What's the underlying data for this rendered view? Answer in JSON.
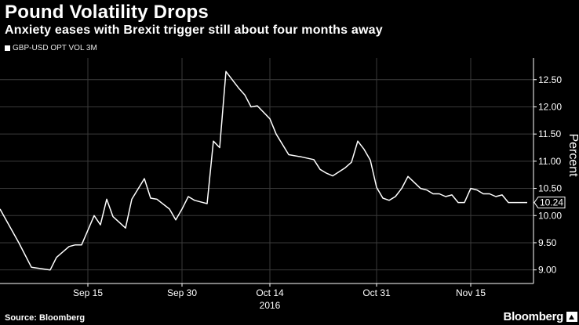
{
  "header": {
    "title": "Pound Volatility Drops",
    "subtitle": "Anxiety eases with Brexit trigger still about four months away"
  },
  "footer": {
    "source": "Source: Bloomberg",
    "brand": "Bloomberg"
  },
  "colors": {
    "background": "#000000",
    "line": "#ffffff",
    "grid": "#3a3a3a",
    "text": "#ffffff"
  },
  "chart_data": {
    "type": "line",
    "title": "Pound Volatility Drops",
    "subtitle": "Anxiety eases with Brexit trigger still about four months away",
    "xlabel": "2016",
    "ylabel": "Percent",
    "ylim": [
      8.75,
      12.9
    ],
    "yticks": [
      "9.00",
      "9.50",
      "10.00",
      "10.50",
      "11.00",
      "11.50",
      "12.00",
      "12.50"
    ],
    "xticks": [
      {
        "label": "Sep 15",
        "day": 14
      },
      {
        "label": "Sep 30",
        "day": 29
      },
      {
        "label": "Oct 14",
        "day": 43
      },
      {
        "label": "Oct 31",
        "day": 60
      },
      {
        "label": "Nov 15",
        "day": 75
      }
    ],
    "x_unit": "days since Sep 1, 2016",
    "xlim": [
      0,
      85
    ],
    "grid": true,
    "legend": "top-left",
    "last_value_label": "10.24",
    "series": [
      {
        "name": "GBP-USD OPT VOL 3M",
        "x": [
          0,
          3,
          5,
          8,
          9,
          11,
          12,
          13,
          15,
          16,
          17,
          18,
          20,
          21,
          23,
          24,
          25,
          27,
          28,
          29,
          30,
          31,
          33,
          34,
          35,
          36,
          38,
          39,
          40,
          41,
          43,
          44,
          46,
          48,
          50,
          51,
          52,
          53,
          55,
          56,
          57,
          58,
          59,
          60,
          61,
          62,
          63,
          64,
          65,
          67,
          68,
          69,
          70,
          71,
          72,
          73,
          74,
          75,
          76,
          77,
          78,
          79,
          80,
          81,
          82,
          84
        ],
        "values": [
          10.12,
          9.5,
          9.05,
          9.0,
          9.23,
          9.43,
          9.46,
          9.46,
          10.0,
          9.83,
          10.3,
          9.98,
          9.77,
          10.3,
          10.68,
          10.32,
          10.3,
          10.12,
          9.92,
          10.12,
          10.35,
          10.28,
          10.22,
          11.37,
          11.25,
          12.65,
          12.35,
          12.22,
          12.0,
          12.02,
          11.78,
          11.5,
          11.12,
          11.08,
          11.03,
          10.85,
          10.78,
          10.73,
          10.88,
          10.98,
          11.37,
          11.22,
          11.02,
          10.52,
          10.32,
          10.28,
          10.35,
          10.5,
          10.72,
          10.5,
          10.47,
          10.4,
          10.4,
          10.35,
          10.38,
          10.24,
          10.24,
          10.5,
          10.47,
          10.4,
          10.4,
          10.35,
          10.38,
          10.24,
          10.24,
          10.24
        ]
      }
    ]
  }
}
